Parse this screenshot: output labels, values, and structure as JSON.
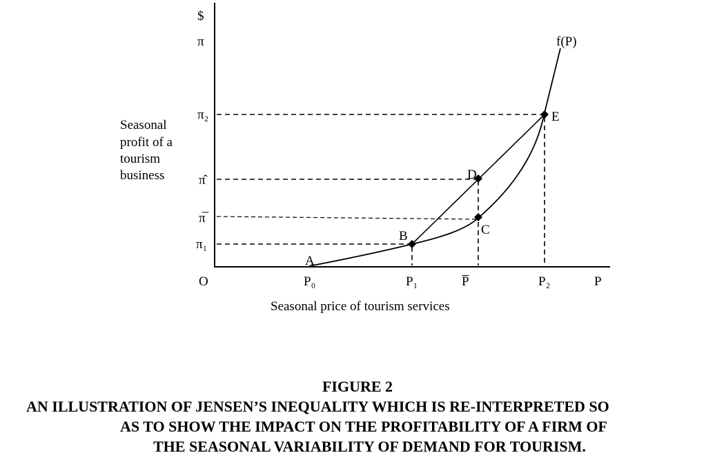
{
  "diagram": {
    "y_axis": {
      "unit_label": "$",
      "ticks": {
        "pi": "π",
        "pi2": "π₂",
        "pi_hat": "π̂",
        "pi_bar": "π̅",
        "pi1": "π₁"
      },
      "title_lines": [
        "Seasonal",
        "profit of a",
        "tourism",
        "business"
      ]
    },
    "x_axis": {
      "origin": "O",
      "ticks": {
        "p0": "P₀",
        "p1": "P₁",
        "p_bar": "P̅",
        "p2": "P₂",
        "p": "P"
      },
      "title": "Seasonal price of tourism services"
    },
    "curve_label": "f(P)",
    "points": {
      "a": "A",
      "b": "B",
      "c": "C",
      "d": "D",
      "e": "E"
    }
  },
  "caption": {
    "heading": "FIGURE 2",
    "line1": "AN ILLUSTRATION OF JENSEN’S INEQUALITY WHICH IS RE-INTERPRETED SO",
    "line2": "AS TO SHOW THE IMPACT ON THE PROFITABILITY OF A FIRM OF",
    "line3": "THE SEASONAL VARIABILITY OF DEMAND FOR TOURISM."
  }
}
